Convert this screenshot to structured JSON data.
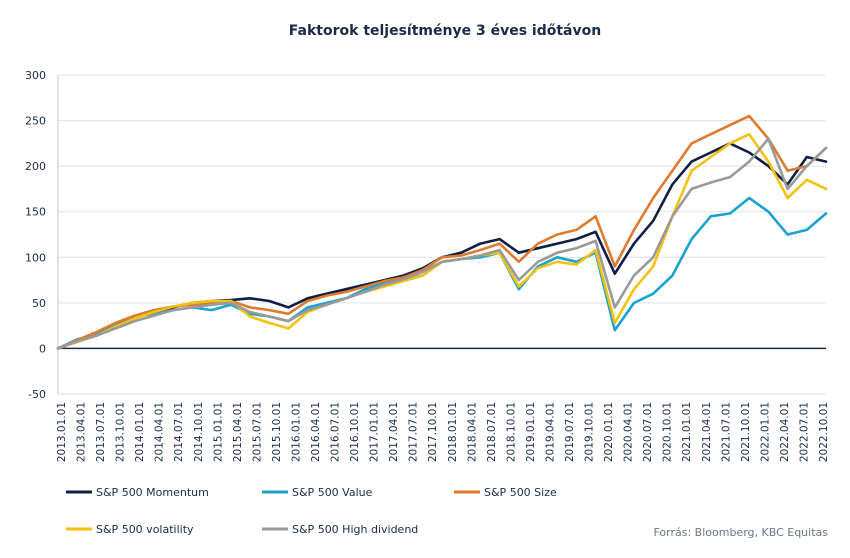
{
  "chart_data": {
    "type": "line",
    "title": "Faktorok teljesítménye 3 éves időtávon",
    "xlabel": "",
    "ylabel": "",
    "ylim": [
      -50,
      300
    ],
    "yticks": [
      300,
      250,
      200,
      150,
      100,
      50,
      0,
      -50
    ],
    "grid": true,
    "legend_position": "bottom",
    "source": "Forrás: Bloomberg, KBC Equitas",
    "x_tick_labels": [
      "2013.01.01",
      "2013.04.01",
      "2013.07.01",
      "2013.10.01",
      "2014.01.01",
      "2014.04.01",
      "2014.07.01",
      "2014.10.01",
      "2015.01.01",
      "2015.04.01",
      "2015.07.01",
      "2015.10.01",
      "2016.01.01",
      "2016.04.01",
      "2016.07.01",
      "2016.10.01",
      "2017.01.01",
      "2017.04.01",
      "2017.07.01",
      "2017.10.01",
      "2018.01.01",
      "2018.04.01",
      "2018.07.01",
      "2018.10.01",
      "2019.01.01",
      "2019.04.01",
      "2019.07.01",
      "2019.10.01",
      "2020.01.01",
      "2020.04.01",
      "2020.07.01",
      "2020.10.01",
      "2021.01.01",
      "2021.04.01",
      "2021.07.01",
      "2021.10.01",
      "2022.01.01",
      "2022.04.01",
      "2022.07.01",
      "2022.10.01"
    ],
    "x": [
      "2013.01",
      "2013.04",
      "2013.07",
      "2013.10",
      "2014.01",
      "2014.04",
      "2014.07",
      "2014.10",
      "2015.01",
      "2015.04",
      "2015.07",
      "2015.10",
      "2016.01",
      "2016.04",
      "2016.07",
      "2016.10",
      "2017.01",
      "2017.04",
      "2017.07",
      "2017.10",
      "2018.01",
      "2018.04",
      "2018.07",
      "2018.10",
      "2019.01",
      "2019.04",
      "2019.07",
      "2019.10",
      "2020.01",
      "2020.04",
      "2020.07",
      "2020.10",
      "2021.01",
      "2021.04",
      "2021.07",
      "2021.10",
      "2022.01",
      "2022.04",
      "2022.07",
      "2022.10",
      "2022.12"
    ],
    "series": [
      {
        "name": "S&P 500 Momentum",
        "color": "#0f1f45",
        "values": [
          0,
          8,
          15,
          25,
          35,
          40,
          45,
          50,
          52,
          53,
          55,
          52,
          45,
          55,
          60,
          65,
          70,
          75,
          80,
          88,
          100,
          105,
          115,
          120,
          105,
          110,
          115,
          120,
          128,
          82,
          115,
          140,
          180,
          205,
          215,
          225,
          215,
          200,
          180,
          210,
          205
        ]
      },
      {
        "name": "S&P 500 Value",
        "color": "#1aa3d1",
        "values": [
          0,
          10,
          15,
          25,
          35,
          38,
          42,
          45,
          42,
          48,
          38,
          35,
          30,
          45,
          50,
          55,
          65,
          72,
          75,
          80,
          95,
          98,
          100,
          105,
          65,
          90,
          100,
          95,
          105,
          20,
          50,
          60,
          80,
          120,
          145,
          148,
          165,
          150,
          125,
          130,
          148
        ]
      },
      {
        "name": "S&P 500 Size",
        "color": "#e07a2f",
        "values": [
          0,
          9,
          18,
          28,
          36,
          42,
          46,
          48,
          50,
          52,
          45,
          42,
          38,
          52,
          58,
          62,
          68,
          74,
          78,
          86,
          100,
          102,
          108,
          115,
          95,
          115,
          125,
          130,
          145,
          90,
          130,
          165,
          195,
          225,
          235,
          245,
          255,
          230,
          195,
          200,
          220
        ]
      },
      {
        "name": "S&P 500 volatility",
        "color": "#f2c20e",
        "values": [
          0,
          7,
          14,
          24,
          33,
          40,
          46,
          50,
          52,
          52,
          35,
          28,
          22,
          40,
          48,
          55,
          62,
          68,
          74,
          80,
          95,
          98,
          102,
          105,
          68,
          88,
          95,
          92,
          108,
          28,
          65,
          90,
          145,
          195,
          210,
          225,
          235,
          205,
          165,
          185,
          175
        ]
      },
      {
        "name": "S&P 500 High dividend",
        "color": "#9a9a9a",
        "values": [
          0,
          8,
          14,
          22,
          30,
          36,
          42,
          45,
          48,
          50,
          40,
          35,
          30,
          42,
          48,
          55,
          62,
          70,
          76,
          84,
          95,
          98,
          102,
          108,
          75,
          95,
          105,
          110,
          118,
          45,
          80,
          100,
          145,
          175,
          182,
          188,
          205,
          230,
          175,
          200,
          220
        ]
      }
    ]
  }
}
